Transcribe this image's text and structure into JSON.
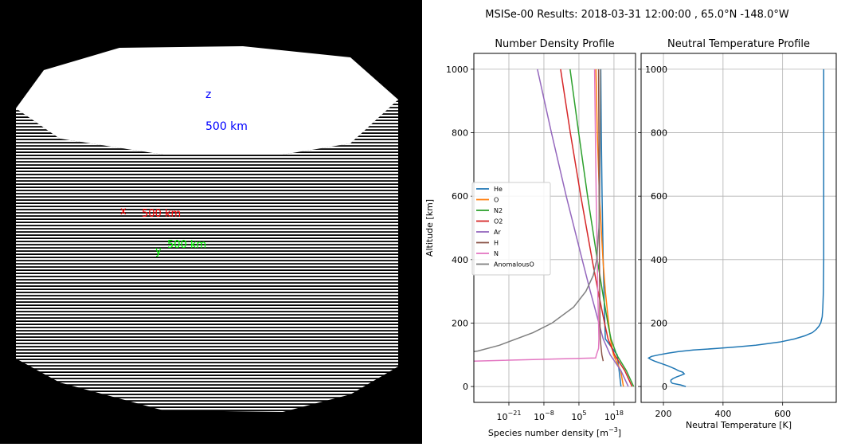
{
  "viewport": {
    "axes": [
      {
        "letter": "z",
        "dist_label": "500 km",
        "color": "#0000ff"
      },
      {
        "letter": "x",
        "dist_label": "500 km",
        "color": "#ff0000"
      },
      {
        "letter": "y",
        "dist_label": "500 km",
        "color": "#00ff00"
      }
    ]
  },
  "suptitle": "MSISe-00 Results: 2018-03-31 12:00:00 , 65.0°N -148.0°W",
  "chart_data": [
    {
      "type": "line",
      "title": "Number Density Profile",
      "xlabel": "Species number density [m",
      "xlabel_sup": "−3",
      "xlabel_tail": "]",
      "ylabel": "Altitude [km]",
      "xscale": "log",
      "xlim_log10": [
        -34,
        26
      ],
      "ylim": [
        -50,
        1050
      ],
      "yticks": [
        0,
        200,
        400,
        600,
        800,
        1000
      ],
      "xticks_log10": [
        -21,
        -8,
        5,
        18
      ],
      "xtick_base": "10",
      "xtick_exps": [
        "−21",
        "−8",
        "5",
        "18"
      ],
      "legend": "left",
      "series": [
        {
          "name": "He",
          "color": "#1f77b4",
          "altitude": [
            0,
            50,
            100,
            150,
            200,
            300,
            400,
            600,
            800,
            1000
          ],
          "log10_density": [
            20.6,
            19.9,
            19.2,
            14.8,
            14.6,
            14.3,
            14.0,
            13.6,
            13.3,
            13.1
          ]
        },
        {
          "name": "O",
          "color": "#ff7f0e",
          "altitude": [
            0,
            50,
            100,
            150,
            200,
            300,
            400,
            600,
            800,
            1000
          ],
          "log10_density": [
            21.5,
            20.5,
            17.8,
            16.7,
            16.0,
            14.8,
            13.9,
            12.6,
            11.8,
            11.3
          ]
        },
        {
          "name": "N2",
          "color": "#2ca02c",
          "altitude": [
            0,
            50,
            100,
            150,
            200,
            300,
            400,
            600,
            800,
            1000
          ],
          "log10_density": [
            25.3,
            22.6,
            19.0,
            16.9,
            15.7,
            13.7,
            11.8,
            8.2,
            4.9,
            1.7
          ]
        },
        {
          "name": "O2",
          "color": "#d62728",
          "altitude": [
            0,
            50,
            100,
            150,
            200,
            300,
            400,
            600,
            800,
            1000
          ],
          "log10_density": [
            24.7,
            22.0,
            18.2,
            15.8,
            14.5,
            12.1,
            9.9,
            5.7,
            1.8,
            -1.8
          ]
        },
        {
          "name": "Ar",
          "color": "#9467bd",
          "altitude": [
            0,
            50,
            100,
            150,
            200,
            300,
            400,
            600,
            800,
            1000
          ],
          "log10_density": [
            23.3,
            20.6,
            16.6,
            14.0,
            12.4,
            9.2,
            6.2,
            0.3,
            -5.2,
            -10.4
          ]
        },
        {
          "name": "H",
          "color": "#8c564b",
          "altitude": [
            80,
            100,
            150,
            200,
            300,
            400,
            600,
            800,
            1000
          ],
          "log10_density": [
            14.0,
            13.5,
            12.9,
            12.8,
            12.7,
            12.6,
            12.5,
            12.4,
            12.3
          ]
        },
        {
          "name": "N",
          "color": "#e377c2",
          "altitude": [
            80,
            90,
            100,
            120,
            150,
            200,
            300,
            400,
            600,
            800,
            1000
          ],
          "log10_density": [
            -34,
            11.2,
            11.5,
            12.3,
            12.4,
            12.3,
            12.0,
            11.8,
            11.4,
            11.1,
            10.8
          ]
        },
        {
          "name": "AnomalousO",
          "color": "#7f7f7f",
          "altitude": [
            110,
            112,
            130,
            170,
            200,
            250,
            300,
            350,
            400,
            500,
            600,
            800,
            1000
          ],
          "log10_density": [
            -34,
            -32.5,
            -24.5,
            -12.0,
            -5.0,
            3.0,
            7.6,
            10.3,
            11.6,
            12.4,
            12.7,
            12.9,
            13.0
          ]
        }
      ]
    },
    {
      "type": "line",
      "title": "Neutral Temperature Profile",
      "xlabel": "Neutral Temperature [K]",
      "ylabel": "",
      "xlim": [
        125,
        780
      ],
      "ylim": [
        -50,
        1050
      ],
      "xticks": [
        200,
        400,
        600
      ],
      "yticks": [
        0,
        200,
        400,
        600,
        800,
        1000
      ],
      "series": [
        {
          "name": "Temperature",
          "color": "#1f77b4",
          "altitude": [
            0,
            5,
            10,
            15,
            20,
            25,
            30,
            35,
            40,
            45,
            50,
            55,
            60,
            65,
            70,
            75,
            80,
            85,
            90,
            95,
            100,
            105,
            110,
            115,
            120,
            125,
            130,
            140,
            150,
            160,
            170,
            180,
            190,
            200,
            220,
            250,
            300,
            400,
            500,
            600,
            700,
            800,
            900,
            1000
          ],
          "temperature": [
            275,
            258,
            230,
            225,
            225,
            232,
            244,
            258,
            270,
            265,
            250,
            240,
            228,
            215,
            200,
            185,
            170,
            158,
            150,
            160,
            185,
            215,
            250,
            300,
            380,
            450,
            510,
            590,
            640,
            675,
            700,
            713,
            722,
            728,
            733,
            735,
            737,
            738,
            738,
            738,
            738,
            738,
            738,
            738
          ]
        }
      ]
    }
  ]
}
